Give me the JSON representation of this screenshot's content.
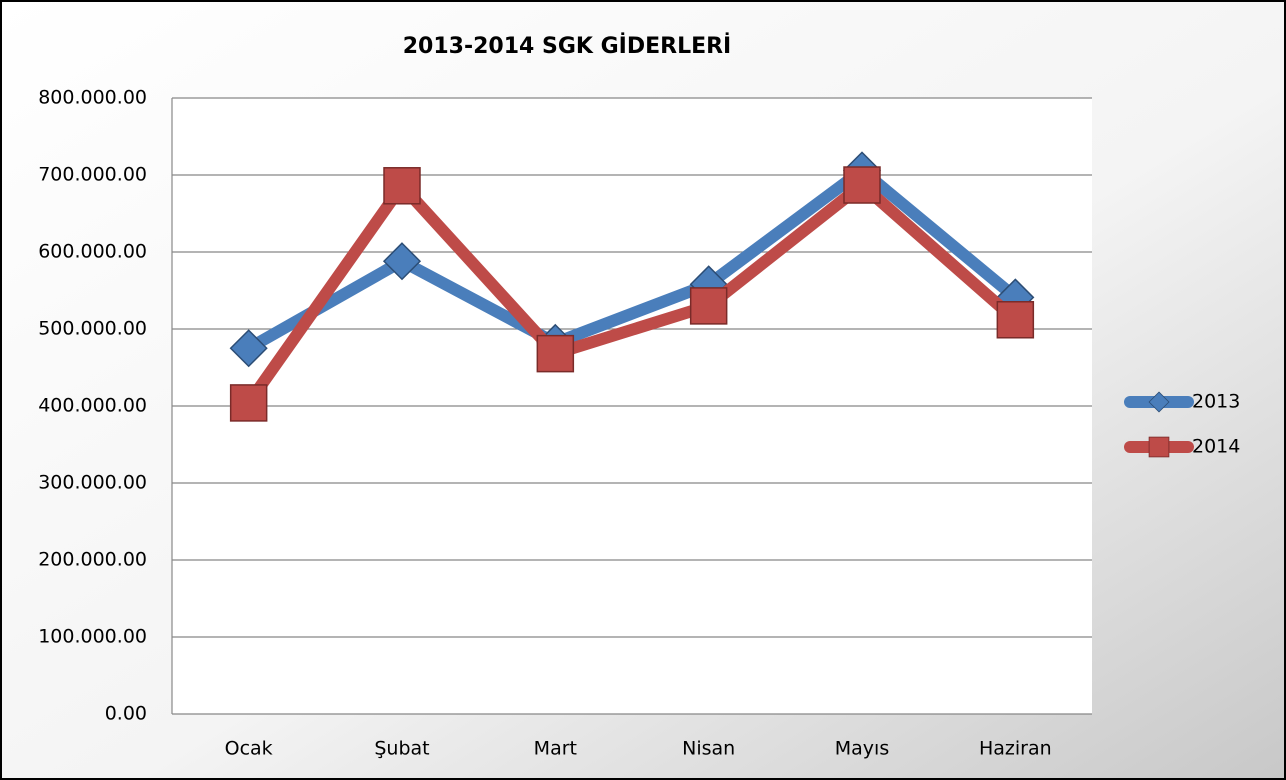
{
  "chart_data": {
    "type": "line",
    "title": "2013-2014 SGK GİDERLERİ",
    "categories": [
      "Ocak",
      "Şubat",
      "Mart",
      "Nisan",
      "Mayıs",
      "Haziran"
    ],
    "series": [
      {
        "name": "2013",
        "color": "#4a7ebb",
        "marker": "diamond",
        "values": [
          475000,
          588000,
          482000,
          558000,
          706000,
          541000
        ]
      },
      {
        "name": "2014",
        "color": "#be4b48",
        "marker": "square",
        "values": [
          404000,
          686000,
          468000,
          530000,
          687000,
          512000
        ]
      }
    ],
    "ylim": [
      0,
      800000
    ],
    "yticks": [
      {
        "value": 0,
        "label": "0.00"
      },
      {
        "value": 100000,
        "label": "100.000.00"
      },
      {
        "value": 200000,
        "label": "200.000.00"
      },
      {
        "value": 300000,
        "label": "300.000.00"
      },
      {
        "value": 400000,
        "label": "400.000.00"
      },
      {
        "value": 500000,
        "label": "500.000.00"
      },
      {
        "value": 600000,
        "label": "600.000.00"
      },
      {
        "value": 700000,
        "label": "700.000.00"
      },
      {
        "value": 800000,
        "label": "800.000.00"
      }
    ],
    "grid": true,
    "legend": "right"
  }
}
